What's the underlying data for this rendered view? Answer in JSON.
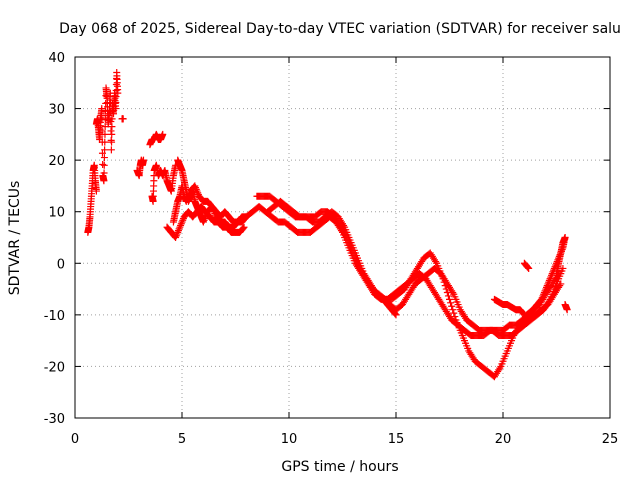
{
  "chart_data": {
    "type": "scatter",
    "title": "Day 068 of 2025, Sidereal Day-to-day VTEC variation (SDTVAR) for receiver salu",
    "xlabel": "GPS time / hours",
    "ylabel": "SDTVAR / TECUs",
    "xlim": [
      0,
      25
    ],
    "ylim": [
      -30,
      40
    ],
    "xticks": [
      "0",
      "5",
      "10",
      "15",
      "20",
      "25"
    ],
    "yticks": [
      "40",
      "30",
      "20",
      "10",
      "0",
      "-10",
      "-20",
      "-30"
    ],
    "grid": true,
    "marker": "+",
    "color": "#ff0000",
    "series": [
      {
        "name": "s1",
        "x": [
          0.6,
          0.65,
          0.7,
          0.75,
          0.8,
          0.85,
          0.9,
          0.95,
          1.0
        ],
        "y": [
          6,
          7,
          9,
          12,
          15,
          18,
          19,
          16,
          14
        ]
      },
      {
        "name": "s2",
        "x": [
          1.0,
          1.05,
          1.1,
          1.15,
          1.2,
          1.25,
          1.3,
          1.35,
          1.4,
          1.45,
          1.5,
          1.55,
          1.6,
          1.65,
          1.7,
          1.75,
          1.8,
          1.85,
          1.9,
          1.95,
          2.0
        ],
        "y": [
          27,
          28,
          26,
          24,
          28,
          30,
          17,
          16,
          25,
          34,
          32,
          27,
          29,
          33,
          22,
          31,
          29,
          33,
          30,
          37,
          33
        ]
      },
      {
        "name": "s3",
        "x": [
          2.2,
          2.25
        ],
        "y": [
          28,
          28
        ]
      },
      {
        "name": "s4",
        "x": [
          2.9,
          3.0,
          3.05,
          3.1,
          3.15,
          3.2
        ],
        "y": [
          18,
          17,
          19,
          20,
          19,
          20
        ]
      },
      {
        "name": "s5",
        "x": [
          3.5,
          3.6,
          3.7,
          3.8,
          3.9,
          4.0,
          4.1
        ],
        "y": [
          23,
          24,
          24,
          25,
          24,
          24,
          25
        ]
      },
      {
        "name": "s6",
        "x": [
          3.6,
          3.65,
          3.7,
          3.8,
          3.9,
          4.0,
          4.1,
          4.2,
          4.3,
          4.4,
          4.5,
          4.6,
          4.7
        ],
        "y": [
          13,
          12,
          18,
          19,
          17,
          18,
          17,
          18,
          16,
          15,
          14,
          17,
          19
        ]
      },
      {
        "name": "s7",
        "x": [
          4.8,
          4.9,
          5.0,
          5.1,
          5.2,
          5.3,
          5.4,
          5.5,
          5.6,
          5.7,
          5.8,
          5.9,
          6.0,
          6.2,
          6.4,
          6.6,
          6.8,
          7.0,
          7.2,
          7.4,
          7.6,
          7.8,
          8.0
        ],
        "y": [
          20,
          19,
          18,
          16,
          14,
          12,
          13,
          14,
          12,
          11,
          10,
          9,
          8,
          10,
          11,
          9,
          8,
          8,
          7,
          7,
          8,
          8,
          9
        ]
      },
      {
        "name": "s8",
        "x": [
          4.6,
          4.7,
          4.8,
          4.9,
          5.0,
          5.1,
          5.2,
          5.4,
          5.6,
          5.8,
          6.0,
          6.2,
          6.4,
          6.6,
          6.8,
          7.0,
          7.2,
          7.4,
          7.6,
          7.8,
          8.0
        ],
        "y": [
          8,
          10,
          12,
          13,
          15,
          13,
          12,
          14,
          15,
          13,
          12,
          12,
          11,
          10,
          9,
          10,
          9,
          8,
          8,
          9,
          9
        ]
      },
      {
        "name": "s9",
        "x": [
          4.3,
          4.5,
          4.7,
          4.9,
          5.1,
          5.3,
          5.5,
          5.7,
          5.9,
          6.1,
          6.3,
          6.5,
          6.7,
          6.9,
          7.1,
          7.3,
          7.5,
          7.7,
          7.9
        ],
        "y": [
          7,
          6,
          5,
          7,
          9,
          10,
          9,
          10,
          11,
          10,
          9,
          8,
          8,
          7,
          7,
          6,
          6,
          6,
          7
        ]
      },
      {
        "name": "s10",
        "x": [
          8.0,
          8.3,
          8.6,
          8.9,
          9.2,
          9.5,
          9.8,
          10.1,
          10.4,
          10.7,
          11.0,
          11.3,
          11.6,
          11.9,
          12.2,
          12.5,
          12.8,
          13.1,
          13.4,
          13.7,
          14.0,
          14.3,
          14.6,
          14.9,
          15.2,
          15.5,
          15.8,
          16.1,
          16.4,
          16.7,
          17.0,
          17.3,
          17.6,
          17.9,
          18.2,
          18.5,
          18.8,
          19.1,
          19.4,
          19.7,
          20.0,
          20.3,
          20.6,
          20.9,
          21.2,
          21.5,
          21.8,
          22.1,
          22.4,
          22.7
        ],
        "y": [
          9,
          10,
          11,
          10,
          9,
          8,
          8,
          7,
          6,
          6,
          6,
          7,
          8,
          9,
          8,
          6,
          3,
          0,
          -2,
          -4,
          -6,
          -7,
          -7,
          -6,
          -5,
          -4,
          -3,
          -2,
          -3,
          -5,
          -7,
          -9,
          -11,
          -12,
          -13,
          -14,
          -14,
          -14,
          -13,
          -13,
          -13,
          -12,
          -12,
          -11,
          -11,
          -10,
          -9,
          -8,
          -6,
          -4
        ]
      },
      {
        "name": "s11",
        "x": [
          8.5,
          8.8,
          9.1,
          9.4,
          9.7,
          10.0,
          10.3,
          10.6,
          10.9,
          11.2,
          11.5,
          11.8,
          12.1,
          12.4,
          12.7,
          13.0,
          13.3,
          13.6,
          13.9,
          14.2,
          14.5,
          14.8,
          15.1,
          15.4,
          15.7,
          16.0,
          16.3,
          16.6,
          16.9,
          17.2,
          17.5,
          17.8,
          18.1,
          18.4,
          18.7,
          19.0,
          19.3,
          19.6,
          19.9,
          20.2,
          20.5,
          20.8,
          21.1,
          21.4,
          21.7,
          22.0,
          22.3,
          22.6
        ],
        "y": [
          13,
          13,
          13,
          12,
          11,
          10,
          9,
          9,
          9,
          9,
          10,
          10,
          9,
          7,
          5,
          2,
          -1,
          -3,
          -5,
          -6,
          -7,
          -7,
          -6,
          -5,
          -3,
          -1,
          1,
          2,
          0,
          -3,
          -7,
          -11,
          -14,
          -17,
          -19,
          -20,
          -21,
          -22,
          -20,
          -17,
          -14,
          -12,
          -10,
          -9,
          -8,
          -6,
          -4,
          -2
        ]
      },
      {
        "name": "s12",
        "x": [
          9.0,
          9.3,
          9.6,
          9.9,
          10.2,
          10.5,
          10.8,
          11.1,
          11.4,
          11.7,
          12.0,
          12.3,
          12.6,
          12.9,
          13.2,
          13.5,
          13.8,
          14.1,
          14.4,
          14.7,
          15.0,
          15.3,
          15.6,
          15.9,
          16.2,
          16.5,
          16.8,
          17.1,
          17.4,
          17.7,
          18.0,
          18.3,
          18.6,
          18.9,
          19.2,
          19.5,
          19.8,
          20.1,
          20.4,
          20.7,
          21.0,
          21.3,
          21.6,
          21.9,
          22.2,
          22.5,
          22.8
        ],
        "y": [
          10,
          11,
          12,
          11,
          10,
          9,
          9,
          8,
          8,
          9,
          10,
          9,
          7,
          4,
          1,
          -2,
          -4,
          -6,
          -7,
          -8,
          -9,
          -8,
          -6,
          -4,
          -3,
          -2,
          -1,
          -2,
          -4,
          -6,
          -9,
          -11,
          -12,
          -13,
          -13,
          -13,
          -14,
          -14,
          -14,
          -13,
          -12,
          -11,
          -10,
          -9,
          -7,
          -4,
          -1
        ]
      },
      {
        "name": "s13",
        "x": [
          14.2,
          14.4,
          14.6,
          14.8,
          15.0
        ],
        "y": [
          -6,
          -7,
          -8,
          -9,
          -10
        ]
      },
      {
        "name": "s14",
        "x": [
          19.6,
          19.8,
          20.0,
          20.2,
          20.4,
          20.6,
          20.8,
          21.0
        ],
        "y": [
          -7,
          -7.5,
          -8,
          -8,
          -8.5,
          -9,
          -9,
          -10
        ]
      },
      {
        "name": "s15",
        "x": [
          20.8,
          21.0,
          21.2,
          21.4,
          21.6,
          21.8,
          22.0,
          22.2,
          22.4,
          22.6,
          22.8,
          22.9
        ],
        "y": [
          -12,
          -11,
          -10,
          -9,
          -8,
          -7,
          -5,
          -3,
          -1,
          1,
          3,
          5
        ]
      },
      {
        "name": "s16",
        "x": [
          22.5,
          22.6,
          22.7,
          22.8,
          22.9
        ],
        "y": [
          -2,
          0,
          2,
          4,
          5
        ]
      },
      {
        "name": "s17",
        "x": [
          22.9,
          23.0
        ],
        "y": [
          -8,
          -9
        ]
      },
      {
        "name": "s18",
        "x": [
          21.0,
          21.2
        ],
        "y": [
          0,
          -1
        ]
      }
    ]
  }
}
